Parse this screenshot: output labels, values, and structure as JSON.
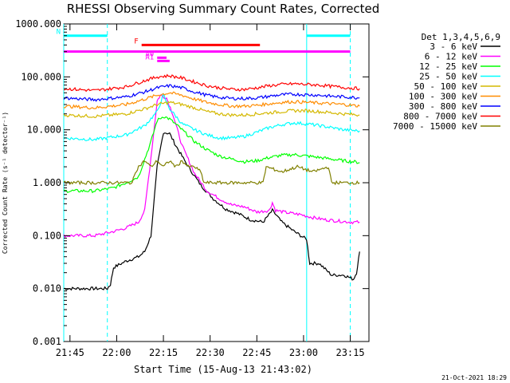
{
  "title": "RHESSI Observing Summary Count Rates, Corrected",
  "footer_date": "21-Oct-2021 18:29",
  "chart_data": {
    "type": "line",
    "title": "RHESSI Observing Summary Count Rates, Corrected",
    "xlabel": "Start Time (15-Aug-13 21:43:02)",
    "ylabel": "Corrected Count Rate (s⁻¹ detector⁻¹)",
    "x_unit": "minutes after 21:43:02",
    "xlim": [
      0,
      98
    ],
    "ylim": [
      0.001,
      1000
    ],
    "yscale": "log",
    "x_ticks": [
      {
        "label": "21:45",
        "value": 2
      },
      {
        "label": "22:00",
        "value": 17
      },
      {
        "label": "22:15",
        "value": 32
      },
      {
        "label": "22:30",
        "value": 47
      },
      {
        "label": "22:45",
        "value": 62
      },
      {
        "label": "23:00",
        "value": 77
      },
      {
        "label": "23:15",
        "value": 92
      }
    ],
    "y_ticks": [
      {
        "label": "1000.000",
        "value": 1000
      },
      {
        "label": "100.000",
        "value": 100
      },
      {
        "label": "10.000",
        "value": 10
      },
      {
        "label": "1.000",
        "value": 1
      },
      {
        "label": "0.100",
        "value": 0.1
      },
      {
        "label": "0.010",
        "value": 0.01
      },
      {
        "label": "0.001",
        "value": 0.001
      }
    ],
    "legend_title": "Det 1,3,4,5,6,9",
    "legend_position": "right",
    "series": [
      {
        "name": "3 - 6 keV",
        "color": "#000000",
        "x": [
          0,
          14,
          15,
          16,
          20,
          24,
          26,
          28,
          30,
          32,
          34,
          36,
          40,
          44,
          48,
          52,
          56,
          60,
          64,
          67,
          70,
          74,
          78,
          79,
          82,
          86,
          90,
          93,
          94,
          95
        ],
        "y": [
          0.01,
          0.01,
          0.012,
          0.025,
          0.033,
          0.04,
          0.05,
          0.1,
          2.0,
          9.0,
          8.5,
          5.0,
          2.0,
          0.9,
          0.5,
          0.32,
          0.26,
          0.2,
          0.18,
          0.3,
          0.18,
          0.12,
          0.085,
          0.03,
          0.03,
          0.018,
          0.018,
          0.015,
          0.02,
          0.05
        ]
      },
      {
        "name": "6 - 12 keV",
        "color": "#ff00ff",
        "x": [
          0,
          10,
          16,
          20,
          24,
          26,
          28,
          30,
          31,
          33,
          35,
          38,
          42,
          46,
          50,
          54,
          58,
          62,
          66,
          67,
          68,
          72,
          76,
          80,
          84,
          88,
          92,
          95
        ],
        "y": [
          0.1,
          0.1,
          0.12,
          0.14,
          0.18,
          0.3,
          3.0,
          35.0,
          45.0,
          40.0,
          20.0,
          5.0,
          1.5,
          0.7,
          0.5,
          0.38,
          0.35,
          0.28,
          0.3,
          0.42,
          0.3,
          0.27,
          0.25,
          0.22,
          0.2,
          0.19,
          0.18,
          0.18
        ]
      },
      {
        "name": "12 - 25 keV",
        "color": "#00ff00",
        "x": [
          0,
          10,
          16,
          20,
          24,
          28,
          30,
          32,
          34,
          38,
          42,
          46,
          50,
          54,
          58,
          62,
          66,
          70,
          74,
          78,
          82,
          86,
          90,
          93,
          95
        ],
        "y": [
          0.7,
          0.7,
          0.8,
          1.0,
          1.3,
          6.0,
          15.0,
          18.0,
          16.0,
          10.0,
          6.0,
          4.2,
          3.2,
          2.8,
          2.5,
          2.6,
          3.0,
          3.3,
          3.4,
          3.2,
          3.0,
          2.8,
          2.6,
          2.5,
          2.4
        ]
      },
      {
        "name": "25 - 50 keV",
        "color": "#00ffff",
        "x": [
          0,
          10,
          20,
          26,
          30,
          32,
          34,
          38,
          42,
          46,
          50,
          54,
          58,
          62,
          66,
          70,
          74,
          78,
          82,
          86,
          90,
          95
        ],
        "y": [
          7.0,
          6.5,
          8.0,
          12.0,
          22.0,
          45.0,
          25.0,
          13.0,
          10.0,
          8.0,
          7.0,
          7.0,
          7.5,
          9.0,
          11.0,
          12.5,
          13.5,
          13.0,
          12.0,
          11.0,
          10.0,
          9.5
        ]
      },
      {
        "name": "50 - 100 keV",
        "color": "#d4b800",
        "x": [
          0,
          10,
          20,
          26,
          30,
          34,
          38,
          42,
          46,
          50,
          54,
          58,
          62,
          66,
          70,
          74,
          78,
          82,
          86,
          90,
          95
        ],
        "y": [
          19.0,
          18.0,
          20.0,
          25.0,
          30.0,
          33.0,
          30.0,
          26.0,
          22.0,
          20.0,
          19.0,
          19.0,
          20.0,
          21.0,
          22.0,
          23.0,
          23.0,
          22.0,
          21.0,
          20.0,
          19.0
        ]
      },
      {
        "name": "100 - 300 keV",
        "color": "#ff8c00",
        "x": [
          0,
          10,
          20,
          26,
          30,
          34,
          38,
          42,
          46,
          50,
          54,
          58,
          62,
          66,
          70,
          74,
          78,
          82,
          86,
          90,
          95
        ],
        "y": [
          28.0,
          26.0,
          30.0,
          38.0,
          45.0,
          50.0,
          45.0,
          38.0,
          33.0,
          30.0,
          28.0,
          28.0,
          29.0,
          31.0,
          33.0,
          34.0,
          33.0,
          32.0,
          31.0,
          30.0,
          28.0
        ]
      },
      {
        "name": "300 - 800 keV",
        "color": "#0000ff",
        "x": [
          0,
          10,
          20,
          26,
          30,
          34,
          38,
          42,
          46,
          50,
          54,
          58,
          62,
          66,
          70,
          74,
          78,
          82,
          86,
          90,
          95
        ],
        "y": [
          40.0,
          37.0,
          42.0,
          52.0,
          62.0,
          68.0,
          62.0,
          52.0,
          45.0,
          41.0,
          39.0,
          39.0,
          40.0,
          43.0,
          46.0,
          47.0,
          46.0,
          45.0,
          43.0,
          42.0,
          40.0
        ]
      },
      {
        "name": "800 - 7000 keV",
        "color": "#ff0000",
        "x": [
          0,
          10,
          20,
          26,
          30,
          34,
          38,
          42,
          46,
          50,
          54,
          58,
          62,
          66,
          70,
          74,
          78,
          82,
          86,
          90,
          95
        ],
        "y": [
          60.0,
          55.0,
          65.0,
          85.0,
          100.0,
          105.0,
          95.0,
          80.0,
          68.0,
          62.0,
          58.0,
          58.0,
          62.0,
          68.0,
          72.0,
          74.0,
          72.0,
          70.0,
          66.0,
          63.0,
          60.0
        ]
      },
      {
        "name": "7000 - 15000 keV",
        "color": "#808000",
        "x": [
          0,
          22,
          23,
          24,
          26,
          28,
          30,
          32,
          34,
          36,
          38,
          40,
          42,
          44,
          45,
          64,
          65,
          70,
          75,
          80,
          85,
          86,
          95
        ],
        "y": [
          1.0,
          1.0,
          1.6,
          2.0,
          2.6,
          2.0,
          2.6,
          2.0,
          2.6,
          2.0,
          2.6,
          2.0,
          2.0,
          1.6,
          1.0,
          1.0,
          2.0,
          1.6,
          2.0,
          1.6,
          2.0,
          1.0,
          1.0
        ]
      }
    ],
    "annotations": [
      {
        "label": "N",
        "color": "#00ffff",
        "type": "segment",
        "x_start": 0,
        "x_end": 14,
        "y": 600
      },
      {
        "label": "",
        "color": "#00ffff",
        "type": "segment",
        "x_start": 78,
        "x_end": 92,
        "y": 600
      },
      {
        "label": "F",
        "color": "#ff0000",
        "type": "segment",
        "x_start": 25,
        "x_end": 63,
        "y": 400
      },
      {
        "label": "",
        "color": "#ff00ff",
        "type": "segment",
        "x_start": 0,
        "x_end": 92,
        "y": 300
      },
      {
        "label": "A0",
        "color": "#ff00ff",
        "type": "segment",
        "x_start": 30,
        "x_end": 33,
        "y": 230
      },
      {
        "label": "A1",
        "color": "#ff00ff",
        "type": "segment",
        "x_start": 30,
        "x_end": 34,
        "y": 200
      }
    ],
    "vertical_markers": [
      {
        "x": 0,
        "color": "#00ffff",
        "style": "solid"
      },
      {
        "x": 14,
        "color": "#00ffff",
        "style": "dashed"
      },
      {
        "x": 78,
        "color": "#00ffff",
        "style": "solid"
      },
      {
        "x": 92,
        "color": "#00ffff",
        "style": "dashed"
      }
    ]
  }
}
